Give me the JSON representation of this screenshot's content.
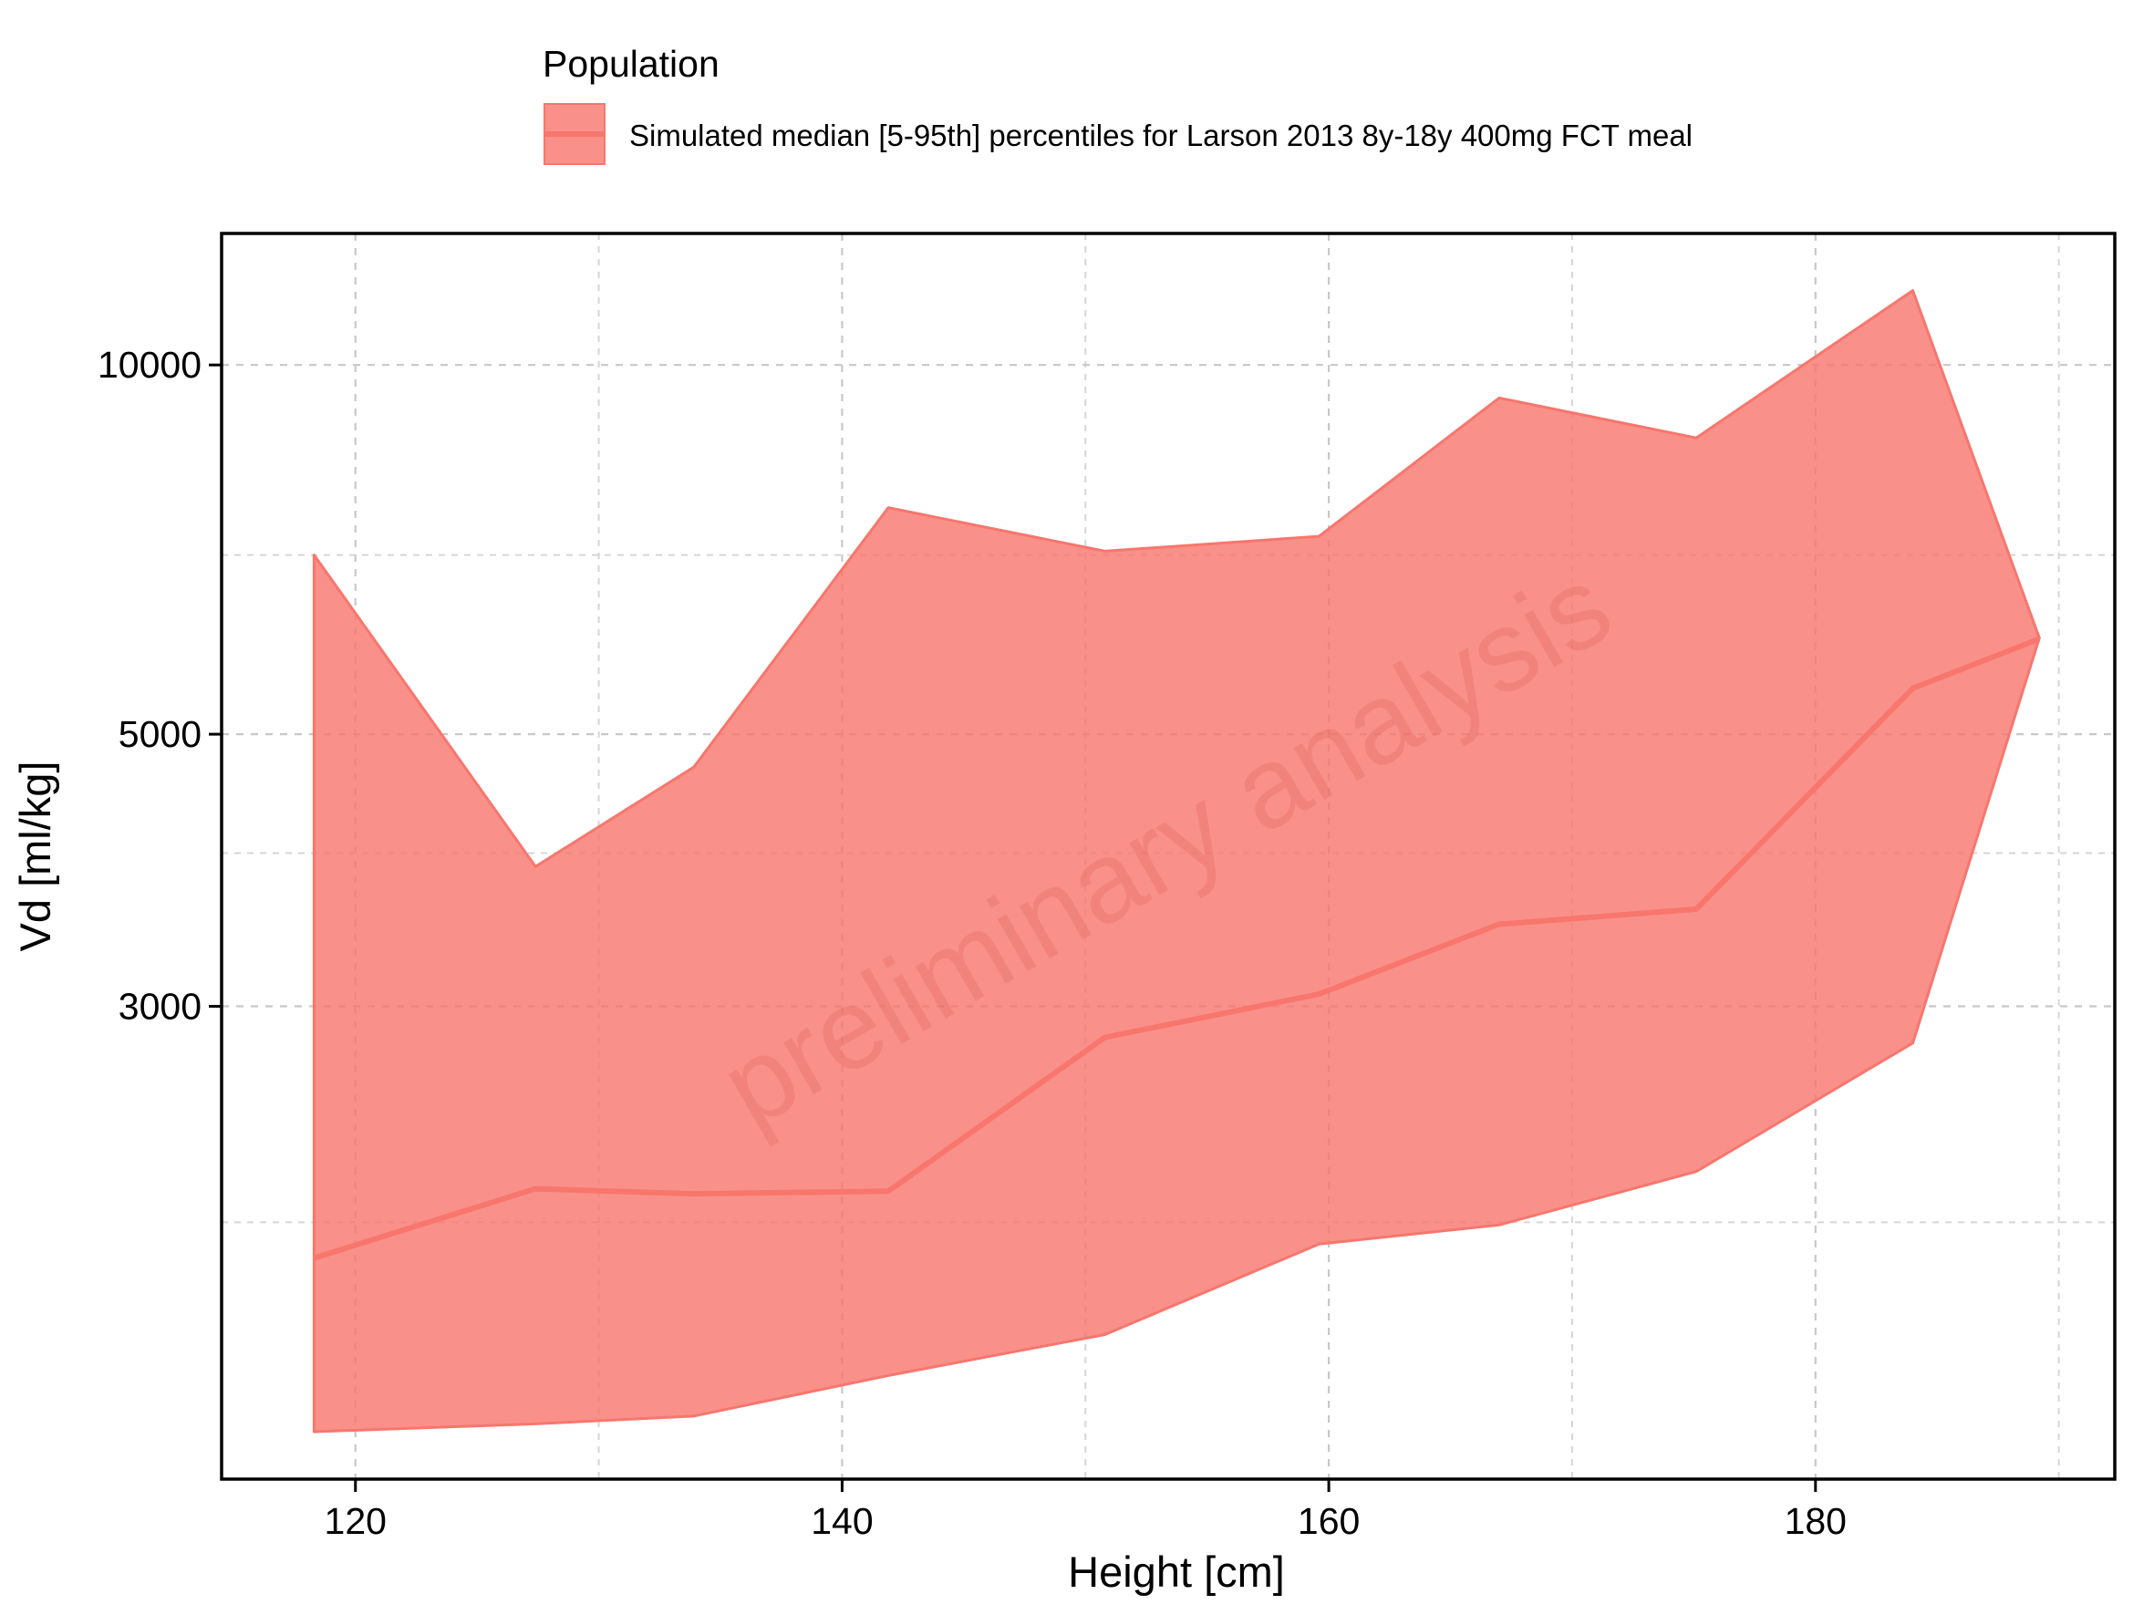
{
  "chart_data": {
    "type": "area",
    "xlabel": "Height [cm]",
    "ylabel": "Vd [ml/kg]",
    "xlim": [
      114.5,
      192.3
    ],
    "ylim": [
      1235,
      12800
    ],
    "yscale": "log",
    "x_ticks": [
      120,
      140,
      160,
      180
    ],
    "x_tick_labels": [
      "120",
      "140",
      "160",
      "180"
    ],
    "y_ticks": [
      3000,
      5000,
      10000
    ],
    "y_tick_labels": [
      "3000",
      "5000",
      "10000"
    ],
    "grid": true,
    "legend": {
      "title": "Population",
      "position": "top",
      "entries": [
        "Simulated median [5-95th] percentiles for Larson 2013 8y-18y 400mg FCT meal"
      ]
    },
    "series": [
      {
        "name": "Simulated median [5-95th] percentiles for Larson 2013 8y-18y 400mg FCT meal",
        "color": "#f8766d",
        "x": [
          118.3,
          127.4,
          133.9,
          141.9,
          150.8,
          159.6,
          167.0,
          175.1,
          184.0,
          189.2
        ],
        "median": [
          1870,
          2130,
          2110,
          2120,
          2830,
          3070,
          3500,
          3600,
          5450,
          5980
        ],
        "p5": [
          1350,
          1370,
          1390,
          1500,
          1620,
          1920,
          1990,
          2200,
          2800,
          5990
        ],
        "p95": [
          7000,
          3900,
          4700,
          7650,
          7050,
          7250,
          9400,
          8720,
          11500,
          5990
        ]
      }
    ],
    "watermark": "preliminary analysis"
  }
}
